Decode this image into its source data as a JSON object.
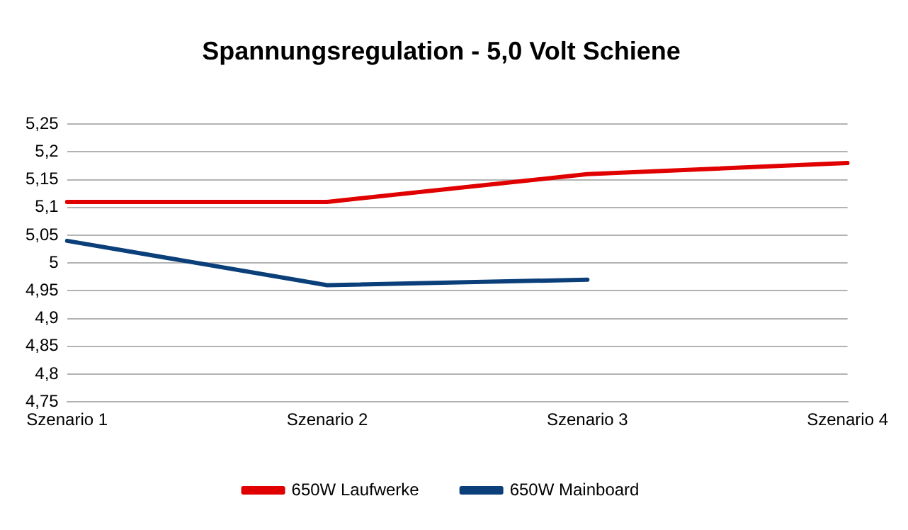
{
  "chart_data": {
    "type": "line",
    "title": "Spannungsregulation - 5,0 Volt Schiene",
    "categories": [
      "Szenario 1",
      "Szenario 2",
      "Szenario 3",
      "Szenario 4"
    ],
    "series": [
      {
        "name": "650W Laufwerke",
        "color": "#e00000",
        "values": [
          5.11,
          5.11,
          5.16,
          5.18
        ]
      },
      {
        "name": "650W Mainboard",
        "color": "#0b3f7a",
        "values": [
          5.04,
          4.96,
          4.97,
          null
        ]
      }
    ],
    "ylim": [
      4.75,
      5.25
    ],
    "yticks": [
      {
        "value": 4.75,
        "label": "4,75"
      },
      {
        "value": 4.8,
        "label": "4,8"
      },
      {
        "value": 4.85,
        "label": "4,85"
      },
      {
        "value": 4.9,
        "label": "4,9"
      },
      {
        "value": 4.95,
        "label": "4,95"
      },
      {
        "value": 5,
        "label": "5"
      },
      {
        "value": 5.05,
        "label": "5,05"
      },
      {
        "value": 5.1,
        "label": "5,1"
      },
      {
        "value": 5.15,
        "label": "5,15"
      },
      {
        "value": 5.2,
        "label": "5,2"
      },
      {
        "value": 5.25,
        "label": "5,25"
      }
    ],
    "grid": "y",
    "legend": "bottom",
    "marker": "none",
    "line_style": "solid"
  }
}
